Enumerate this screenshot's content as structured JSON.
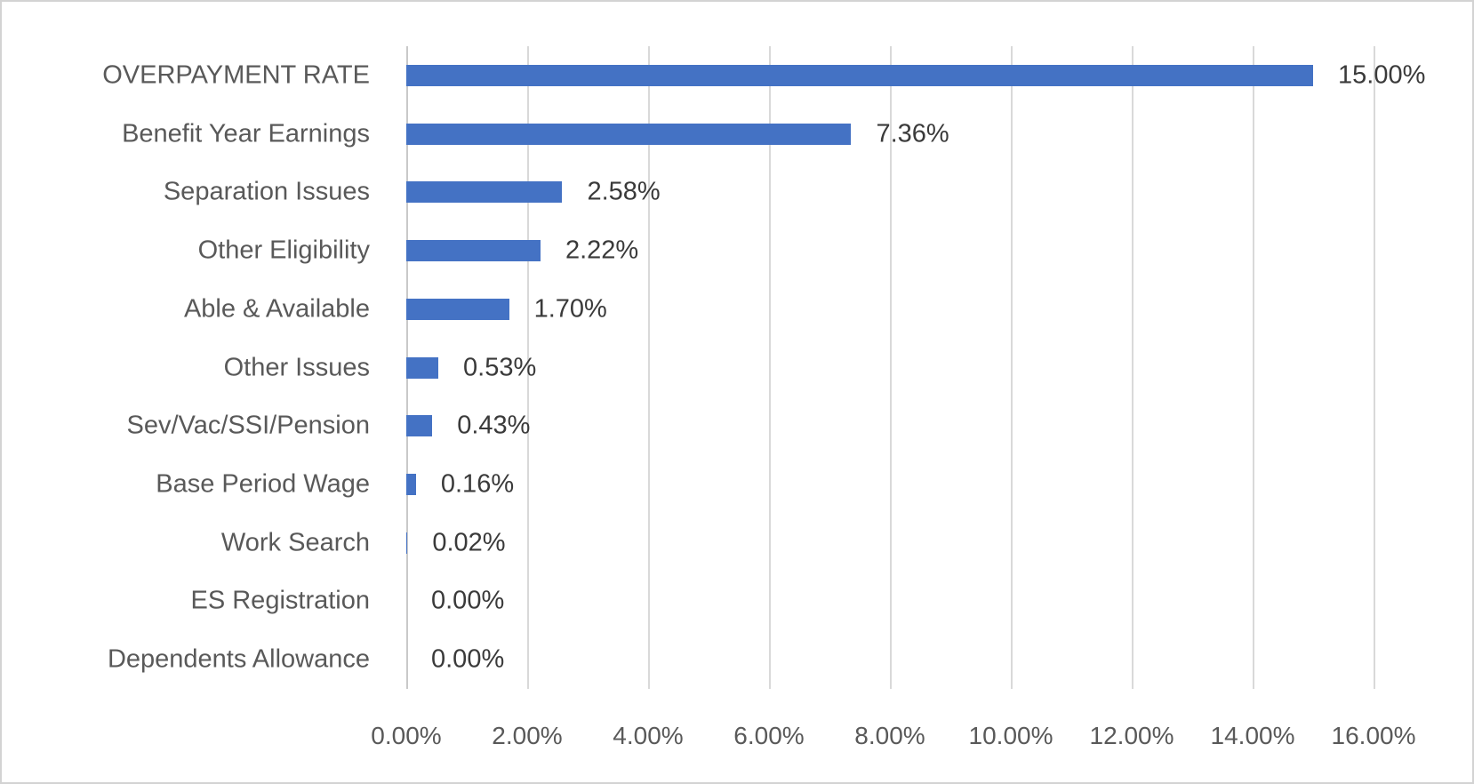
{
  "chart_data": {
    "type": "bar",
    "orientation": "horizontal",
    "title": "",
    "xlabel": "",
    "ylabel": "",
    "xlim": [
      0,
      16
    ],
    "grid": true,
    "legend": false,
    "bar_color": "#4472C4",
    "gridline_color": "#D9D9D9",
    "category_label_color": "#595959",
    "data_label_color": "#3A3A3A",
    "categories": [
      "OVERPAYMENT RATE",
      "Benefit Year Earnings",
      "Separation Issues",
      "Other Eligibility",
      "Able & Available",
      "Other Issues",
      "Sev/Vac/SSI/Pension",
      "Base Period Wage",
      "Work Search",
      "ES Registration",
      "Dependents Allowance"
    ],
    "values": [
      15.0,
      7.36,
      2.58,
      2.22,
      1.7,
      0.53,
      0.43,
      0.16,
      0.02,
      0.0,
      0.0
    ],
    "data_labels": [
      "15.00%",
      "7.36%",
      "2.58%",
      "2.22%",
      "1.70%",
      "0.53%",
      "0.43%",
      "0.16%",
      "0.02%",
      "0.00%",
      "0.00%"
    ],
    "x_ticks": [
      "0.00%",
      "2.00%",
      "4.00%",
      "6.00%",
      "8.00%",
      "10.00%",
      "12.00%",
      "14.00%",
      "16.00%"
    ]
  }
}
